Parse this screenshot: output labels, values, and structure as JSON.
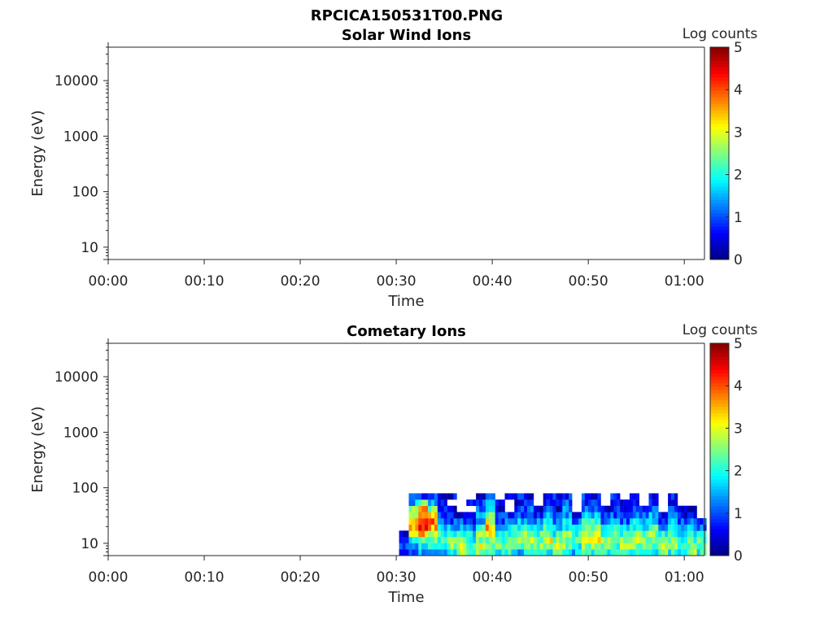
{
  "figure_title": "RPCICA150531T00.PNG",
  "chart_data": [
    {
      "type": "heatmap",
      "title": "Solar Wind Ions",
      "xlabel": "Time",
      "ylabel": "Energy (eV)",
      "xlim_minutes": [
        0,
        62.1
      ],
      "ylim": [
        6,
        40000
      ],
      "yscale": "log",
      "xticks": [
        "00:00",
        "00:10",
        "00:20",
        "00:30",
        "00:40",
        "00:50",
        "01:00"
      ],
      "xtick_values_minutes": [
        0,
        10,
        20,
        30,
        40,
        50,
        60
      ],
      "yticks": [
        "10",
        "100",
        "1000",
        "10000"
      ],
      "ytick_values": [
        10,
        100,
        1000,
        10000
      ],
      "colorbar": {
        "label": "Log counts",
        "range": [
          0,
          5
        ],
        "ticks": [
          "0",
          "1",
          "2",
          "3",
          "4",
          "5"
        ],
        "colormap": "jet"
      },
      "grid": {
        "time_start_minutes": 30,
        "time_step_minutes": 1,
        "energy_log_range": [
          0.78,
          1.9
        ],
        "values": []
      }
    },
    {
      "type": "heatmap",
      "title": "Cometary Ions",
      "xlabel": "Time",
      "ylabel": "Energy (eV)",
      "xlim_minutes": [
        0,
        62.1
      ],
      "ylim": [
        6,
        40000
      ],
      "yscale": "log",
      "xticks": [
        "00:00",
        "00:10",
        "00:20",
        "00:30",
        "00:40",
        "00:50",
        "01:00"
      ],
      "xtick_values_minutes": [
        0,
        10,
        20,
        30,
        40,
        50,
        60
      ],
      "yticks": [
        "10",
        "100",
        "1000",
        "10000"
      ],
      "ytick_values": [
        10,
        100,
        1000,
        10000
      ],
      "colorbar": {
        "label": "Log counts",
        "range": [
          0,
          5
        ],
        "ticks": [
          "0",
          "1",
          "2",
          "3",
          "4",
          "5"
        ],
        "colormap": "jet"
      },
      "grid": {
        "time_start_minutes": 30.3,
        "time_step_minutes": 1,
        "energy_log_range": [
          0.78,
          1.9
        ],
        "values": [
          [
            1,
            1,
            0.8,
            0.6,
            null,
            null,
            null,
            null,
            null,
            null
          ],
          [
            1,
            1.5,
            2,
            3,
            3.5,
            3.5,
            3,
            2.5,
            1.5,
            0.8
          ],
          [
            1.5,
            2,
            2.5,
            3.5,
            4.2,
            4.3,
            4,
            3.5,
            2.5,
            1
          ],
          [
            1.5,
            2,
            2.5,
            3,
            3.5,
            3.8,
            3.2,
            2.5,
            1.5,
            1
          ],
          [
            1.5,
            2,
            2,
            2,
            1.5,
            1.2,
            1,
            0.8,
            0.5,
            0.5
          ],
          [
            2,
            2.5,
            2.5,
            2,
            1.5,
            1,
            0.8,
            0.5,
            null,
            0.5
          ],
          [
            2.5,
            3,
            2.8,
            2.2,
            1.5,
            1,
            0.5,
            null,
            null,
            null
          ],
          [
            2,
            2.2,
            2,
            1.8,
            1.3,
            0.8,
            0.5,
            null,
            0.5,
            null
          ],
          [
            2.5,
            3,
            2.5,
            2.5,
            2,
            1.5,
            1.5,
            1,
            0.8,
            0.5
          ],
          [
            2,
            2.5,
            2.5,
            3,
            3.5,
            3,
            2.5,
            1.8,
            1.5,
            1
          ],
          [
            2,
            2.5,
            2.2,
            2,
            1.5,
            1,
            0.8,
            0.5,
            0.5,
            null
          ],
          [
            2,
            2.2,
            2.5,
            2.2,
            1.8,
            1.2,
            0.8,
            null,
            null,
            0.5
          ],
          [
            1.5,
            2,
            2.5,
            2.5,
            2,
            1.5,
            1,
            0.8,
            0.5,
            0.8
          ],
          [
            2,
            2.5,
            2.8,
            2.5,
            2,
            1.5,
            1.2,
            1,
            0.8,
            0.5
          ],
          [
            2,
            2.5,
            2.5,
            2.2,
            1.8,
            1.2,
            0.8,
            0.5,
            null,
            null
          ],
          [
            2,
            2.5,
            3,
            2.5,
            2.2,
            1.8,
            1.5,
            1,
            0.8,
            0.5
          ],
          [
            2.5,
            2.8,
            2.5,
            2,
            1.5,
            1,
            0.8,
            0.5,
            0.5,
            0.8
          ],
          [
            2,
            2.5,
            2.5,
            2.5,
            2,
            1.8,
            1.5,
            1.2,
            1,
            0.8
          ],
          [
            1.5,
            2,
            2.2,
            2,
            1.5,
            1,
            0.5,
            null,
            null,
            null
          ],
          [
            2,
            2.5,
            2.8,
            2.8,
            2.5,
            2,
            1.5,
            1,
            0.8,
            0.8
          ],
          [
            2,
            2.5,
            3,
            3,
            2.5,
            2,
            1.5,
            1,
            0.8,
            0.5
          ],
          [
            2,
            2.5,
            2.5,
            2.2,
            1.8,
            1.2,
            0.8,
            0.5,
            null,
            null
          ],
          [
            2,
            2.2,
            2.5,
            2.5,
            2,
            1.5,
            1,
            0.8,
            0.5,
            0.8
          ],
          [
            2.5,
            2.8,
            2.5,
            2,
            1.5,
            1,
            0.8,
            0.5,
            0.5,
            null
          ],
          [
            2,
            2.5,
            2.8,
            2.5,
            2,
            1.8,
            1.2,
            1,
            0.8,
            0.5
          ],
          [
            2,
            2.5,
            2.5,
            2.2,
            1.8,
            1.5,
            1,
            0.5,
            null,
            null
          ],
          [
            2,
            2.2,
            2.5,
            2.5,
            2.2,
            1.8,
            1.5,
            1,
            0.8,
            0.5
          ],
          [
            2.5,
            2.8,
            2.5,
            2,
            1.5,
            1,
            0.5,
            null,
            null,
            null
          ],
          [
            2,
            2.5,
            2.5,
            2.2,
            1.8,
            1.5,
            1,
            0.8,
            0.5,
            0.8
          ],
          [
            2,
            2.2,
            2,
            1.8,
            1.5,
            1,
            0.5,
            0.5,
            null,
            null
          ],
          [
            2.5,
            2.5,
            2.2,
            2,
            1.5,
            1.2,
            0.8,
            0.5,
            null,
            null
          ],
          [
            2,
            2.5,
            2.2,
            1.8,
            1.2,
            0.8,
            null,
            null,
            null,
            null
          ]
        ]
      }
    }
  ]
}
